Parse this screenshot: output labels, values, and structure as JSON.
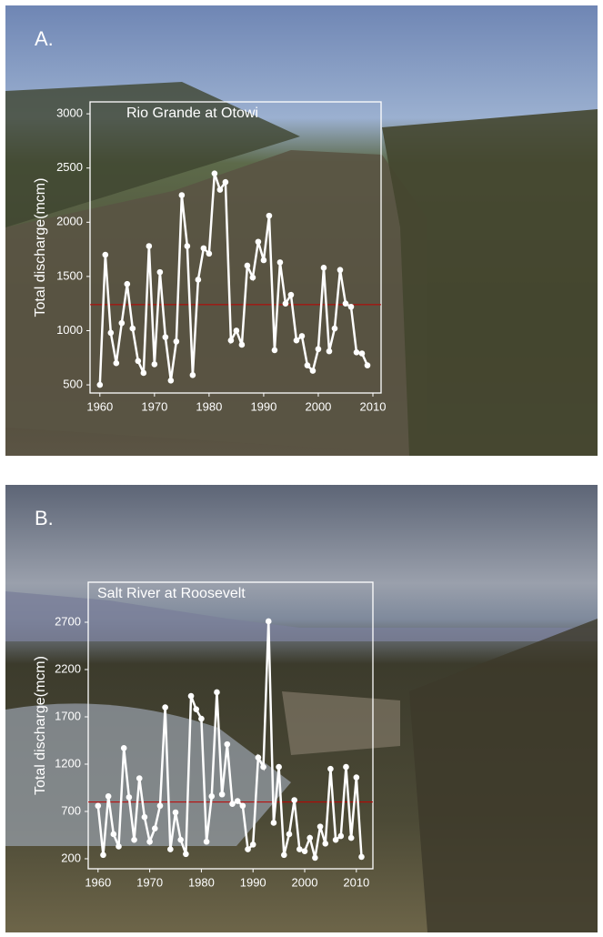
{
  "chart_data": [
    {
      "type": "line",
      "panel_label": "A.",
      "title": "Rio Grande at Otowi",
      "y_label": "Total discharge(mcm)",
      "x": [
        1960,
        1961,
        1962,
        1963,
        1964,
        1965,
        1966,
        1967,
        1968,
        1969,
        1970,
        1971,
        1972,
        1973,
        1974,
        1975,
        1976,
        1977,
        1978,
        1979,
        1980,
        1981,
        1982,
        1983,
        1984,
        1985,
        1986,
        1987,
        1988,
        1989,
        1990,
        1991,
        1992,
        1993,
        1994,
        1995,
        1996,
        1997,
        1998,
        1999,
        2000,
        2001,
        2002,
        2003,
        2004,
        2005,
        2006,
        2007,
        2008,
        2009
      ],
      "series": [
        {
          "color": "#ffffff",
          "values": [
            500,
            1700,
            980,
            700,
            1070,
            1430,
            1020,
            720,
            610,
            1780,
            690,
            1540,
            940,
            540,
            900,
            2250,
            1780,
            590,
            1470,
            1760,
            1710,
            2450,
            2300,
            2370,
            910,
            1000,
            870,
            1600,
            1490,
            1820,
            1650,
            2060,
            820,
            1630,
            1250,
            1330,
            910,
            950,
            680,
            630,
            830,
            1580,
            810,
            1020,
            1560,
            1250,
            1220,
            800,
            790,
            680
          ]
        }
      ],
      "reference_line": {
        "value": 1240,
        "color": "#c00000"
      },
      "xlim": [
        1958.2,
        2011.5
      ],
      "xticks": [
        1960,
        1970,
        1980,
        1990,
        2000,
        2010
      ],
      "ylim": [
        425,
        3110
      ],
      "yticks": [
        500,
        1000,
        1500,
        2000,
        2500,
        3000
      ]
    },
    {
      "type": "line",
      "panel_label": "B.",
      "title": "Salt River at Roosevelt",
      "y_label": "Total discharge(mcm)",
      "x": [
        1960,
        1961,
        1962,
        1963,
        1964,
        1965,
        1966,
        1967,
        1968,
        1969,
        1970,
        1971,
        1972,
        1973,
        1974,
        1975,
        1976,
        1977,
        1978,
        1979,
        1980,
        1981,
        1982,
        1983,
        1984,
        1985,
        1986,
        1987,
        1988,
        1989,
        1990,
        1991,
        1992,
        1993,
        1994,
        1995,
        1996,
        1997,
        1998,
        1999,
        2000,
        2001,
        2002,
        2003,
        2004,
        2005,
        2006,
        2007,
        2008,
        2009,
        2010,
        2011
      ],
      "series": [
        {
          "color": "#ffffff",
          "values": [
            760,
            240,
            860,
            460,
            330,
            1370,
            850,
            400,
            1050,
            640,
            380,
            520,
            760,
            1800,
            300,
            690,
            400,
            250,
            1920,
            1780,
            1680,
            380,
            860,
            1960,
            880,
            1410,
            780,
            810,
            760,
            300,
            350,
            1270,
            1170,
            2710,
            580,
            1170,
            240,
            460,
            820,
            300,
            280,
            420,
            210,
            540,
            360,
            1150,
            400,
            440,
            1170,
            420,
            1060,
            220
          ]
        }
      ],
      "reference_line": {
        "value": 800,
        "color": "#c00000"
      },
      "xlim": [
        1958.1,
        2013.2
      ],
      "xticks": [
        1960,
        1970,
        1980,
        1990,
        2000,
        2010
      ],
      "ylim": [
        94,
        3123
      ],
      "yticks": [
        200,
        700,
        1200,
        1700,
        2200,
        2700
      ]
    }
  ]
}
